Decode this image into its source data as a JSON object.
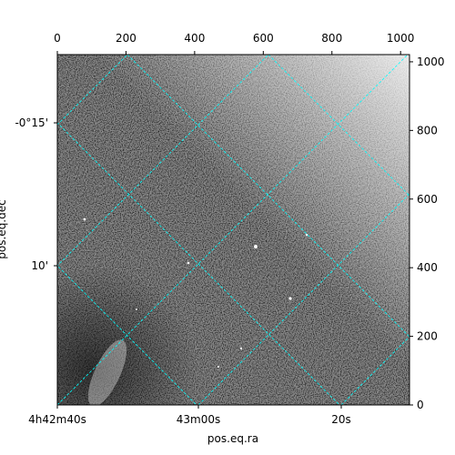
{
  "chart_data": {
    "type": "image",
    "xlabel": "pos.eq.ra",
    "ylabel": "pos.eq.dec",
    "xlim": [
      0,
      1026
    ],
    "ylim": [
      0,
      1021
    ],
    "xticks": [
      0,
      200,
      400,
      600,
      800,
      1000
    ],
    "yticks": [
      0,
      200,
      400,
      600,
      800,
      1000
    ],
    "ra_ticks": [
      "4h42m40s",
      "43m00s",
      "20s"
    ],
    "dec_ticks": [
      "-0°15'",
      "10'"
    ],
    "grid_color": "#00ffff"
  }
}
